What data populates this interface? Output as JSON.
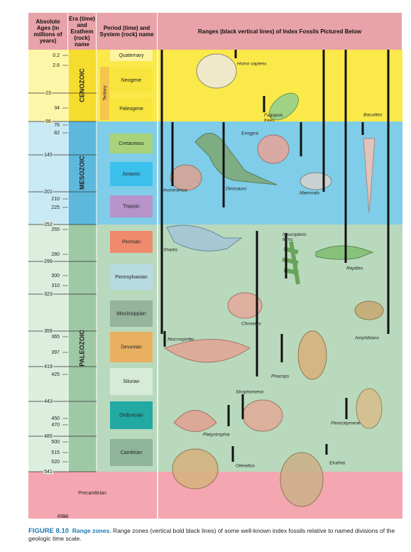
{
  "header": {
    "age": "Absolute Ages (in millions of years)",
    "era": "Era (time) and Erathem (rock) name",
    "period": "Period (time) and System (rock) name",
    "ranges": "Ranges (black vertical lines) of Index Fossils Pictured Below"
  },
  "eras": [
    "CENOZOIC",
    "MESOZOIC",
    "PALEOZOIC"
  ],
  "subera": "Tertiary",
  "periods": [
    "Quaternary",
    "Neogene",
    "Paleogene",
    "Cretaceous",
    "Jurassic",
    "Triassic",
    "Permian",
    "Pennsylvanian",
    "Mississippian",
    "Devonian",
    "Silurian",
    "Ordovician",
    "Cambrian",
    "Precambrian"
  ],
  "ages": [
    0.2,
    2.6,
    23,
    34,
    66,
    76,
    82,
    145,
    201,
    210,
    225,
    252,
    255,
    280,
    299,
    300,
    310,
    323,
    359,
    365,
    397,
    419,
    425,
    443,
    450,
    470,
    485,
    500,
    515,
    520,
    541,
    4550
  ],
  "fossils": [
    "Homo sapiens",
    "Fagopsis trees",
    "Baculites",
    "Exogyra",
    "Dinosaurs",
    "Mammals",
    "Inoceramus",
    "Sharks",
    "Neuropteris ferns",
    "Reptiles",
    "Chonetes",
    "Amphibians",
    "Mucrospirifer",
    "Phacops",
    "Strophomena",
    "Flexicalymene",
    "Platystrophia",
    "Olenellus",
    "Elrathia"
  ],
  "caption": {
    "label": "FIGURE 8.10",
    "title": "Range zones.",
    "text": "Range zones (vertical bold black lines) of some well-known index fossils relative to named divisions of the geologic time scale."
  }
}
